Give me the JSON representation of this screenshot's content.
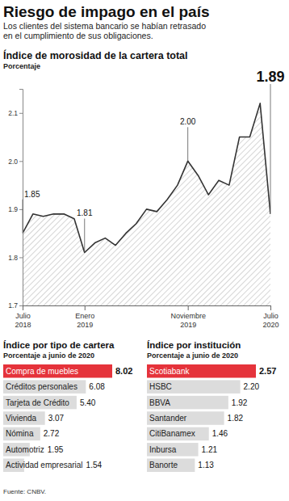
{
  "title": "Riesgo de impago en el país",
  "subtitle": [
    "Los clientes del sistema bancario se habían retrasado",
    "en el cumplimiento de sus obligaciones."
  ],
  "source": "Fuente: CNBV.",
  "chart_data": [
    {
      "type": "line",
      "title": "Índice de morosidad de la cartera total",
      "subtitle": "Porcentaje",
      "categories": [
        "Julio 2018",
        null,
        null,
        null,
        null,
        null,
        "Enero 2019",
        null,
        null,
        null,
        null,
        null,
        null,
        null,
        null,
        null,
        "Noviembre 2019",
        null,
        null,
        null,
        null,
        null,
        null,
        null,
        "Julio 2020"
      ],
      "values": [
        1.85,
        1.89,
        1.885,
        1.89,
        1.89,
        1.88,
        1.81,
        1.83,
        1.84,
        1.825,
        1.85,
        1.87,
        1.9,
        1.895,
        1.92,
        1.95,
        2.0,
        1.97,
        1.93,
        1.96,
        1.95,
        2.05,
        2.05,
        2.12,
        1.89
      ],
      "value_labels": [
        "1.85",
        null,
        null,
        null,
        null,
        null,
        "1.81",
        null,
        null,
        null,
        null,
        null,
        null,
        null,
        null,
        null,
        "2.00",
        null,
        null,
        null,
        null,
        null,
        null,
        null,
        "1.89"
      ],
      "data_labels": true,
      "color": "#333333",
      "ylim": [
        1.7,
        2.15
      ],
      "yticks": [
        1.7,
        1.8,
        1.9,
        {
          "value": 2,
          "label": "2.0"
        },
        2.1
      ],
      "grid": false
    },
    {
      "type": "bar",
      "orientation": "horizontal",
      "title": "Índice por tipo de cartera",
      "subtitle": "Porcentaje a junio de 2020",
      "categories": [
        "Compra de muebles",
        "Créditos personales",
        "Tarjeta de Crédito",
        "Vivienda",
        "Nómina",
        "Automotriz",
        "Actividad empresarial"
      ],
      "values": [
        8.02,
        6.08,
        5.4,
        3.07,
        2.72,
        1.95,
        1.54
      ],
      "value_labels": [
        "8.02",
        "6.08",
        "5.40",
        "3.07",
        "2.72",
        "1.95",
        "1.54"
      ],
      "data_labels": true,
      "tick_labels": false,
      "colors": [
        "#e5333b",
        "#dcdcdc",
        "#dcdcdc",
        "#dcdcdc",
        "#dcdcdc",
        "#dcdcdc",
        "#dcdcdc"
      ]
    },
    {
      "type": "bar",
      "orientation": "horizontal",
      "title": "Índice por institución",
      "subtitle": "Porcentaje a junio de 2020",
      "categories": [
        "Scotiabank",
        "HSBC",
        "BBVA",
        "Santander",
        "CitiBanamex",
        "Inbursa",
        "Banorte"
      ],
      "values": [
        2.57,
        2.2,
        1.92,
        1.82,
        1.46,
        1.21,
        1.13
      ],
      "value_labels": [
        "2.57",
        "2.20",
        "1.92",
        "1.82",
        "1.46",
        "1.21",
        "1.13"
      ],
      "data_labels": true,
      "tick_labels": false,
      "colors": [
        "#e5333b",
        "#dcdcdc",
        "#dcdcdc",
        "#dcdcdc",
        "#dcdcdc",
        "#dcdcdc",
        "#dcdcdc"
      ]
    }
  ]
}
